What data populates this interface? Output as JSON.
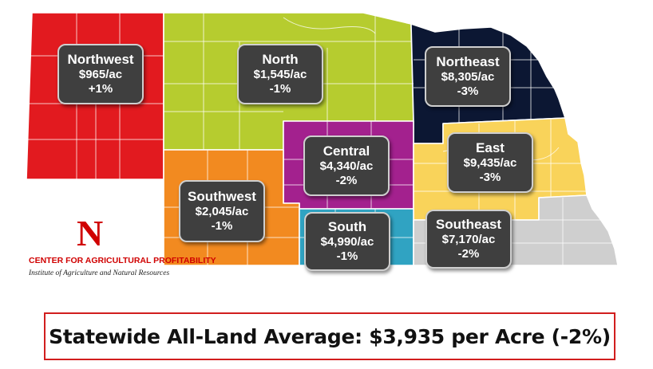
{
  "regions": {
    "northwest": {
      "name": "Northwest",
      "value": "$965/ac",
      "change": "+1%",
      "color": "#e21a1f"
    },
    "north": {
      "name": "North",
      "value": "$1,545/ac",
      "change": "-1%",
      "color": "#b6cc2f"
    },
    "northeast": {
      "name": "Northeast",
      "value": "$8,305/ac",
      "change": "-3%",
      "color": "#0c1733"
    },
    "central": {
      "name": "Central",
      "value": "$4,340/ac",
      "change": "-2%",
      "color": "#a3218e"
    },
    "east": {
      "name": "East",
      "value": "$9,435/ac",
      "change": "-3%",
      "color": "#f9d35a"
    },
    "southwest": {
      "name": "Southwest",
      "value": "$2,045/ac",
      "change": "-1%",
      "color": "#f28a20"
    },
    "south": {
      "name": "South",
      "value": "$4,990/ac",
      "change": "-1%",
      "color": "#30a3c2"
    },
    "southeast": {
      "name": "Southeast",
      "value": "$7,170/ac",
      "change": "-2%",
      "color": "#cfcfcf"
    }
  },
  "logo": {
    "letter": "N",
    "center_name": "CENTER FOR AGRICULTURAL PROFITABILITY",
    "institute": "Institute of Agriculture and Natural Resources"
  },
  "statewide": "Statewide All-Land Average: $3,935 per Acre (-2%)"
}
